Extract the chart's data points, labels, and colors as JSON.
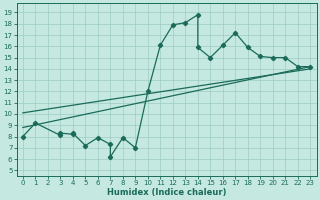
{
  "xlabel": "Humidex (Indice chaleur)",
  "xlim": [
    -0.5,
    23.5
  ],
  "ylim": [
    4.5,
    19.8
  ],
  "xticks": [
    0,
    1,
    2,
    3,
    4,
    5,
    6,
    7,
    8,
    9,
    10,
    11,
    12,
    13,
    14,
    15,
    16,
    17,
    18,
    19,
    20,
    21,
    22,
    23
  ],
  "yticks": [
    5,
    6,
    7,
    8,
    9,
    10,
    11,
    12,
    13,
    14,
    15,
    16,
    17,
    18,
    19
  ],
  "bg_color": "#c5e8e0",
  "line_color": "#1a6b5a",
  "grid_color": "#9dccc4",
  "scatter_x": [
    0,
    1,
    3,
    3,
    4,
    4,
    5,
    6,
    7,
    7,
    8,
    9,
    10,
    11,
    12,
    13,
    14,
    14,
    15,
    16,
    17,
    18,
    19,
    20,
    21,
    22,
    23
  ],
  "scatter_y": [
    8,
    9.2,
    8.1,
    8.3,
    8.2,
    8.3,
    7.2,
    7.9,
    7.3,
    6.2,
    7.9,
    7.0,
    12.0,
    16.1,
    17.9,
    18.1,
    18.8,
    15.9,
    15.0,
    16.1,
    17.2,
    15.9,
    15.1,
    15.0,
    15.0,
    14.2,
    14.2
  ],
  "reg_line1_x": [
    0,
    23
  ],
  "reg_line1_y": [
    8.8,
    14.2
  ],
  "reg_line2_x": [
    0,
    23
  ],
  "reg_line2_y": [
    10.1,
    14.0
  ],
  "marker_size": 2.2,
  "line_width": 0.9,
  "tick_fontsize": 5.0,
  "xlabel_fontsize": 6.0
}
